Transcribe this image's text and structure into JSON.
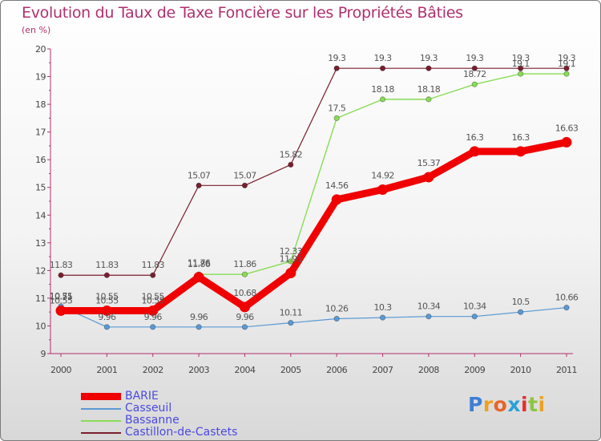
{
  "title": "Evolution du Taux de Taxe Foncière sur les Propriétés Bâties",
  "unit": "(en %)",
  "brand": {
    "letters": [
      "P",
      "r",
      "o",
      "x",
      "i",
      "t",
      "i"
    ],
    "colors": [
      "#3d7fd6",
      "#f0a020",
      "#e8642a",
      "#2aa0d8",
      "#e03030",
      "#8cc63f",
      "#f0a020"
    ]
  },
  "chart_data": {
    "type": "line",
    "title": "Evolution du Taux de Taxe Foncière sur les Propriétés Bâties",
    "ylabel": "(en %)",
    "xlabel": "",
    "x": [
      "2000",
      "2001",
      "2002",
      "2003",
      "2004",
      "2005",
      "2006",
      "2007",
      "2008",
      "2009",
      "2010",
      "2011"
    ],
    "ylim": [
      9,
      20
    ],
    "yticks": [
      "9",
      "10",
      "11",
      "12",
      "13",
      "14",
      "15",
      "16",
      "17",
      "18",
      "19",
      "20"
    ],
    "grid": false,
    "legend_position": "bottom-left",
    "series": [
      {
        "name": "Castillon-de-Castets",
        "color": "#7a1f2e",
        "values": [
          11.83,
          11.83,
          11.83,
          15.07,
          15.07,
          15.82,
          19.3,
          19.3,
          19.3,
          19.3,
          19.3,
          19.3
        ],
        "labels": [
          "11.83",
          "11.83",
          "11.83",
          "15.07",
          "15.07",
          "15.82",
          "19.3",
          "19.3",
          "19.3",
          "19.3",
          "19.3",
          "19.3"
        ]
      },
      {
        "name": "Bassanne",
        "color": "#88dd55",
        "values": [
          10.55,
          10.55,
          10.55,
          11.86,
          11.86,
          12.33,
          17.5,
          18.18,
          18.18,
          18.72,
          19.1,
          19.1
        ],
        "labels": [
          "10.55",
          "10.55",
          "10.55",
          "11.86",
          "11.86",
          "12.33",
          "17.5",
          "18.18",
          "18.18",
          "18.72",
          "19.1",
          "19.1"
        ]
      },
      {
        "name": "Casseuil",
        "color": "#5a9ad4",
        "values": [
          10.71,
          9.96,
          9.96,
          9.96,
          9.96,
          10.11,
          10.26,
          10.3,
          10.34,
          10.34,
          10.5,
          10.66
        ],
        "labels": [
          "10.71",
          "9.96",
          "9.96",
          "9.96",
          "9.96",
          "10.11",
          "10.26",
          "10.3",
          "10.34",
          "10.34",
          "10.5",
          "10.66"
        ]
      },
      {
        "name": "BARIE",
        "color": "#f00000",
        "values": [
          10.55,
          10.55,
          10.55,
          11.76,
          10.68,
          11.91,
          14.56,
          14.92,
          15.37,
          16.3,
          16.3,
          16.63
        ],
        "labels": [
          "10.55",
          "10.55",
          "10.55",
          "11.76",
          "10.68",
          "11.91",
          "14.56",
          "14.92",
          "15.37",
          "16.3",
          "16.3",
          "16.63"
        ]
      }
    ],
    "legend": [
      "BARIE",
      "Casseuil",
      "Bassanne",
      "Castillon-de-Castets"
    ]
  }
}
